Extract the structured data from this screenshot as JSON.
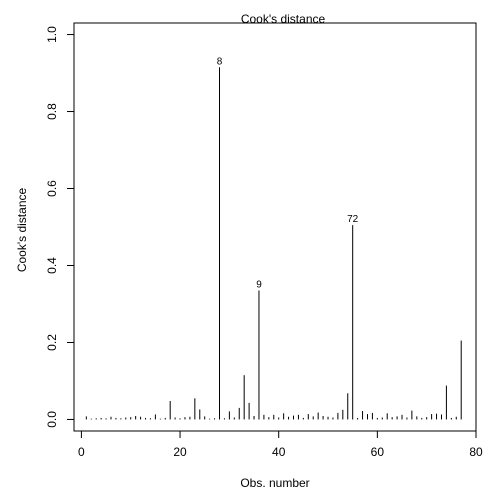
{
  "chart_data": {
    "type": "bar",
    "title": "Cook's distance",
    "xlabel": "Obs. number",
    "ylabel": "Cook's distance",
    "xlim": [
      -1.5,
      80
    ],
    "ylim": [
      -0.03,
      1.03
    ],
    "x_ticks": [
      0,
      20,
      40,
      60,
      80
    ],
    "y_ticks": [
      0.0,
      0.2,
      0.4,
      0.6,
      0.8,
      1.0
    ],
    "x_tick_labels": [
      "0",
      "20",
      "40",
      "60",
      "80"
    ],
    "y_tick_labels": [
      "0.0",
      "0.2",
      "0.4",
      "0.6",
      "0.8",
      "1.0"
    ],
    "grid": false,
    "x": [
      1,
      2,
      3,
      4,
      5,
      6,
      7,
      8,
      9,
      10,
      11,
      12,
      13,
      14,
      15,
      16,
      17,
      18,
      19,
      20,
      21,
      22,
      23,
      24,
      25,
      26,
      27,
      28,
      29,
      30,
      31,
      32,
      33,
      34,
      35,
      36,
      37,
      38,
      39,
      40,
      41,
      42,
      43,
      44,
      45,
      46,
      47,
      48,
      49,
      50,
      51,
      52,
      53,
      54,
      55,
      56,
      57,
      58,
      59,
      60,
      61,
      62,
      63,
      64,
      65,
      66,
      67,
      68,
      69,
      70,
      71,
      72,
      73,
      74,
      75,
      76,
      77
    ],
    "values": [
      0.008,
      0.002,
      0.003,
      0.004,
      0.003,
      0.007,
      0.004,
      0.003,
      0.005,
      0.006,
      0.009,
      0.007,
      0.004,
      0.003,
      0.013,
      0.002,
      0.004,
      0.048,
      0.005,
      0.003,
      0.006,
      0.007,
      0.055,
      0.026,
      0.008,
      0.002,
      0.003,
      0.915,
      0.003,
      0.021,
      0.005,
      0.03,
      0.115,
      0.043,
      0.009,
      0.335,
      0.012,
      0.006,
      0.012,
      0.005,
      0.016,
      0.007,
      0.01,
      0.012,
      0.004,
      0.014,
      0.008,
      0.018,
      0.009,
      0.007,
      0.005,
      0.017,
      0.025,
      0.068,
      0.505,
      0.004,
      0.022,
      0.014,
      0.017,
      0.004,
      0.005,
      0.016,
      0.006,
      0.008,
      0.012,
      0.005,
      0.023,
      0.008,
      0.004,
      0.006,
      0.014,
      0.015,
      0.013,
      0.088,
      0.004,
      0.007,
      0.205
    ],
    "annotations": [
      {
        "x": 28,
        "y": 0.915,
        "text": "8"
      },
      {
        "x": 36,
        "y": 0.335,
        "text": "9"
      },
      {
        "x": 55,
        "y": 0.505,
        "text": "72"
      }
    ]
  }
}
